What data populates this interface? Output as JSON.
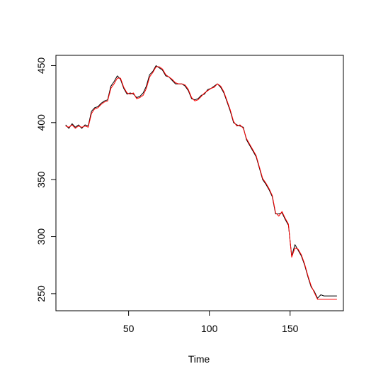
{
  "chart_data": {
    "type": "line",
    "title": "",
    "xlabel": "Time",
    "ylabel": "",
    "xlim": [
      5,
      183
    ],
    "ylim": [
      235,
      459
    ],
    "x_ticks": [
      50,
      100,
      150
    ],
    "y_ticks": [
      250,
      300,
      350,
      400,
      450
    ],
    "x_tick_labels": [
      "50",
      "100",
      "150"
    ],
    "y_tick_labels": [
      "250",
      "300",
      "350",
      "400",
      "450"
    ],
    "grid": false,
    "legend": null,
    "series": [
      {
        "color": "#000000",
        "x": [
          11,
          13,
          15,
          17,
          19,
          21,
          23,
          25,
          27,
          29,
          31,
          33,
          35,
          37,
          39,
          41,
          43,
          45,
          47,
          49,
          51,
          53,
          55,
          57,
          59,
          61,
          63,
          65,
          67,
          69,
          71,
          73,
          75,
          77,
          79,
          81,
          83,
          85,
          87,
          89,
          91,
          93,
          95,
          97,
          99,
          101,
          103,
          105,
          107,
          109,
          111,
          113,
          115,
          117,
          119,
          121,
          123,
          125,
          127,
          129,
          131,
          133,
          135,
          137,
          139,
          141,
          143,
          145,
          147,
          149,
          151,
          153,
          155,
          157,
          159,
          161,
          163,
          165,
          167,
          169,
          171,
          173,
          175,
          177,
          179
        ],
        "values": [
          398,
          395,
          399,
          396,
          398,
          395,
          398,
          397,
          410,
          413,
          414,
          417,
          419,
          420,
          432,
          436,
          441,
          438,
          430,
          425,
          426,
          425,
          422,
          423,
          426,
          432,
          442,
          445,
          450,
          448,
          446,
          441,
          440,
          437,
          434,
          434,
          434,
          432,
          428,
          421,
          420,
          421,
          424,
          425,
          429,
          430,
          432,
          434,
          431,
          426,
          418,
          410,
          400,
          398,
          397,
          396,
          385,
          380,
          375,
          370,
          360,
          350,
          346,
          341,
          335,
          320,
          320,
          321,
          315,
          310,
          283,
          293,
          288,
          283,
          275,
          265,
          256,
          252,
          246,
          249,
          248,
          248,
          248,
          248,
          248
        ]
      },
      {
        "color": "#ff0000",
        "x": [
          11,
          13,
          15,
          17,
          19,
          21,
          23,
          25,
          27,
          29,
          31,
          33,
          35,
          37,
          39,
          41,
          43,
          45,
          47,
          49,
          51,
          53,
          55,
          57,
          59,
          61,
          63,
          65,
          67,
          69,
          71,
          73,
          75,
          77,
          79,
          81,
          83,
          85,
          87,
          89,
          91,
          93,
          95,
          97,
          99,
          101,
          103,
          105,
          107,
          109,
          111,
          113,
          115,
          117,
          119,
          121,
          123,
          125,
          127,
          129,
          131,
          133,
          135,
          137,
          139,
          141,
          143,
          145,
          147,
          149,
          151,
          153,
          155,
          157,
          159,
          161,
          163,
          165,
          167,
          169,
          171,
          173,
          175,
          177,
          179
        ],
        "values": [
          397,
          396,
          398,
          395,
          397,
          396,
          397,
          396,
          408,
          412,
          413,
          416,
          418,
          419,
          430,
          434,
          439,
          439,
          431,
          426,
          425,
          426,
          421,
          422,
          424,
          430,
          440,
          444,
          449,
          449,
          447,
          442,
          440,
          438,
          435,
          434,
          434,
          433,
          429,
          422,
          419,
          420,
          423,
          426,
          428,
          430,
          431,
          434,
          432,
          427,
          419,
          411,
          401,
          397,
          398,
          395,
          386,
          381,
          376,
          371,
          361,
          351,
          347,
          342,
          336,
          321,
          318,
          322,
          316,
          311,
          282,
          290,
          289,
          284,
          276,
          266,
          257,
          251,
          245,
          245,
          245,
          245,
          245,
          245,
          245
        ]
      }
    ]
  }
}
